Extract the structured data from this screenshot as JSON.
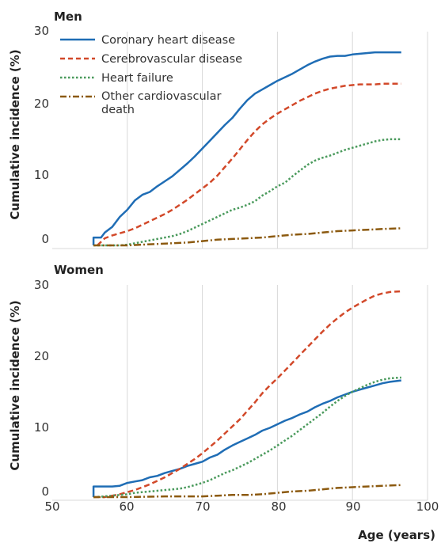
{
  "chart_data": [
    {
      "type": "line",
      "panel_title": "Men",
      "ylabel": "Cumulative incidence (%)",
      "ylim": [
        0,
        30
      ],
      "yticks": [
        "0",
        "10",
        "20",
        "30"
      ],
      "xlim": [
        50,
        100
      ],
      "grid": "vertical",
      "legend": [
        "Coronary heart disease",
        "Cerebrovascular disease",
        "Heart failure",
        "Other cardiovascular death"
      ],
      "legend_placement": "top-left",
      "series": [
        {
          "name": "Coronary heart disease",
          "color": "#1f6db5",
          "style": "solid",
          "x": [
            55.5,
            55.5,
            56.5,
            57,
            58,
            59,
            60,
            61,
            62,
            63,
            64,
            65,
            66,
            67,
            68,
            69,
            70,
            71,
            72,
            73,
            74,
            75,
            76,
            77,
            78,
            79,
            80,
            81,
            82,
            83,
            84,
            85,
            86,
            87,
            88,
            89,
            90,
            91,
            92,
            93,
            94,
            95,
            96.5
          ],
          "y": [
            0,
            1.1,
            1.1,
            1.8,
            2.6,
            4.0,
            5.0,
            6.3,
            7.1,
            7.5,
            8.3,
            9.0,
            9.7,
            10.6,
            11.5,
            12.5,
            13.6,
            14.7,
            15.8,
            16.9,
            17.9,
            19.2,
            20.4,
            21.3,
            21.9,
            22.5,
            23.1,
            23.6,
            24.1,
            24.7,
            25.3,
            25.8,
            26.2,
            26.5,
            26.6,
            26.6,
            26.8,
            26.9,
            27.0,
            27.1,
            27.1,
            27.1,
            27.1
          ]
        },
        {
          "name": "Cerebrovascular disease",
          "color": "#d2492a",
          "style": "dashed",
          "x": [
            56,
            57,
            58,
            59,
            60,
            61,
            62,
            63,
            64,
            65,
            66,
            67,
            68,
            69,
            70,
            71,
            72,
            73,
            74,
            75,
            76,
            77,
            78,
            79,
            80,
            81,
            82,
            83,
            84,
            85,
            86,
            87,
            88,
            89,
            90,
            91,
            92,
            93,
            94,
            95,
            96.5
          ],
          "y": [
            0,
            1.0,
            1.4,
            1.7,
            2.0,
            2.4,
            2.9,
            3.4,
            3.9,
            4.4,
            5.0,
            5.7,
            6.4,
            7.2,
            8.0,
            8.8,
            9.8,
            11.0,
            12.2,
            13.5,
            14.8,
            16.0,
            17.0,
            17.8,
            18.5,
            19.1,
            19.7,
            20.3,
            20.8,
            21.3,
            21.7,
            22.0,
            22.2,
            22.4,
            22.5,
            22.6,
            22.6,
            22.6,
            22.7,
            22.7,
            22.7
          ]
        },
        {
          "name": "Heart failure",
          "color": "#4a9a5c",
          "style": "dotted",
          "x": [
            55.5,
            58,
            59,
            60,
            61,
            62,
            63,
            64,
            65,
            66,
            67,
            68,
            69,
            70,
            71,
            72,
            73,
            74,
            75,
            76,
            77,
            78,
            79,
            80,
            81,
            82,
            83,
            84,
            85,
            86,
            87,
            88,
            89,
            90,
            91,
            92,
            93,
            94,
            95,
            96.5
          ],
          "y": [
            0,
            0,
            0,
            0.1,
            0.3,
            0.5,
            0.7,
            0.9,
            1.1,
            1.3,
            1.6,
            2.0,
            2.5,
            3.0,
            3.5,
            4.0,
            4.5,
            5.0,
            5.3,
            5.7,
            6.2,
            7.0,
            7.6,
            8.3,
            8.8,
            9.7,
            10.5,
            11.3,
            11.9,
            12.3,
            12.6,
            13.0,
            13.4,
            13.7,
            14.0,
            14.3,
            14.6,
            14.8,
            14.9,
            14.9
          ]
        },
        {
          "name": "Other cardiovascular death",
          "color": "#8c5a10",
          "style": "dashdot",
          "x": [
            55.5,
            60,
            62,
            64,
            66,
            68,
            70,
            72,
            74,
            76,
            78,
            80,
            82,
            84,
            86,
            88,
            90,
            92,
            94,
            96.5
          ],
          "y": [
            0,
            0,
            0.1,
            0.2,
            0.3,
            0.4,
            0.6,
            0.8,
            0.9,
            1.0,
            1.1,
            1.3,
            1.5,
            1.6,
            1.8,
            2.0,
            2.1,
            2.2,
            2.3,
            2.4
          ]
        }
      ]
    },
    {
      "type": "line",
      "panel_title": "Women",
      "ylabel": "Cumulative incidence (%)",
      "ylim": [
        0,
        30
      ],
      "yticks": [
        "0",
        "10",
        "20",
        "30"
      ],
      "xlim": [
        50,
        100
      ],
      "xticks": [
        "50",
        "60",
        "70",
        "80",
        "90",
        "100"
      ],
      "xlabel": "Age (years)",
      "grid": "vertical",
      "series": [
        {
          "name": "Coronary heart disease",
          "color": "#1f6db5",
          "style": "solid",
          "x": [
            55.5,
            55.5,
            56,
            57,
            58,
            59,
            60,
            61,
            62,
            63,
            64,
            65,
            66,
            67,
            68,
            69,
            70,
            71,
            72,
            73,
            74,
            75,
            76,
            77,
            78,
            79,
            80,
            81,
            82,
            83,
            84,
            85,
            86,
            87,
            88,
            89,
            90,
            91,
            92,
            93,
            94,
            95,
            96.5
          ],
          "y": [
            0,
            1.5,
            1.5,
            1.5,
            1.5,
            1.6,
            2.0,
            2.2,
            2.4,
            2.8,
            3.0,
            3.4,
            3.7,
            4.0,
            4.4,
            4.7,
            5.0,
            5.6,
            6.0,
            6.7,
            7.3,
            7.8,
            8.3,
            8.8,
            9.4,
            9.8,
            10.3,
            10.8,
            11.2,
            11.7,
            12.1,
            12.7,
            13.2,
            13.6,
            14.1,
            14.5,
            14.9,
            15.2,
            15.5,
            15.8,
            16.1,
            16.3,
            16.5
          ]
        },
        {
          "name": "Cerebrovascular disease",
          "color": "#d2492a",
          "style": "dashed",
          "x": [
            55.5,
            57,
            58,
            59,
            60,
            61,
            62,
            63,
            64,
            65,
            66,
            67,
            68,
            69,
            70,
            71,
            72,
            73,
            74,
            75,
            76,
            77,
            78,
            79,
            80,
            81,
            82,
            83,
            84,
            85,
            86,
            87,
            88,
            89,
            90,
            91,
            92,
            93,
            94,
            95,
            96.5
          ],
          "y": [
            0,
            0,
            0.2,
            0.4,
            0.7,
            1.0,
            1.4,
            1.8,
            2.3,
            2.8,
            3.4,
            4.0,
            4.7,
            5.4,
            6.2,
            7.1,
            8.0,
            9.0,
            10.0,
            11.0,
            12.2,
            13.4,
            14.7,
            15.8,
            16.8,
            17.9,
            19.0,
            20.1,
            21.2,
            22.3,
            23.4,
            24.4,
            25.3,
            26.1,
            26.8,
            27.4,
            28.0,
            28.5,
            28.8,
            29.0,
            29.1
          ]
        },
        {
          "name": "Heart failure",
          "color": "#4a9a5c",
          "style": "dotted",
          "x": [
            55.5,
            57,
            58,
            59,
            60,
            61,
            62,
            63,
            64,
            65,
            66,
            67,
            68,
            69,
            70,
            71,
            72,
            73,
            74,
            75,
            76,
            77,
            78,
            79,
            80,
            81,
            82,
            83,
            84,
            85,
            86,
            87,
            88,
            89,
            90,
            91,
            92,
            93,
            94,
            95,
            96.5
          ],
          "y": [
            0,
            0.1,
            0.2,
            0.3,
            0.4,
            0.6,
            0.7,
            0.8,
            0.9,
            1.0,
            1.1,
            1.2,
            1.4,
            1.7,
            2.0,
            2.4,
            2.9,
            3.4,
            3.8,
            4.3,
            4.8,
            5.4,
            6.0,
            6.6,
            7.3,
            8.0,
            8.7,
            9.5,
            10.3,
            11.1,
            11.9,
            12.8,
            13.6,
            14.3,
            14.9,
            15.4,
            15.9,
            16.3,
            16.6,
            16.8,
            16.9
          ]
        },
        {
          "name": "Other cardiovascular death",
          "color": "#8c5a10",
          "style": "dashdot",
          "x": [
            55.5,
            60,
            65,
            70,
            72,
            74,
            76,
            78,
            80,
            82,
            84,
            86,
            88,
            90,
            92,
            94,
            96.5
          ],
          "y": [
            0,
            0,
            0.1,
            0.1,
            0.2,
            0.3,
            0.3,
            0.4,
            0.6,
            0.8,
            0.9,
            1.1,
            1.3,
            1.4,
            1.5,
            1.6,
            1.7
          ]
        }
      ]
    }
  ]
}
